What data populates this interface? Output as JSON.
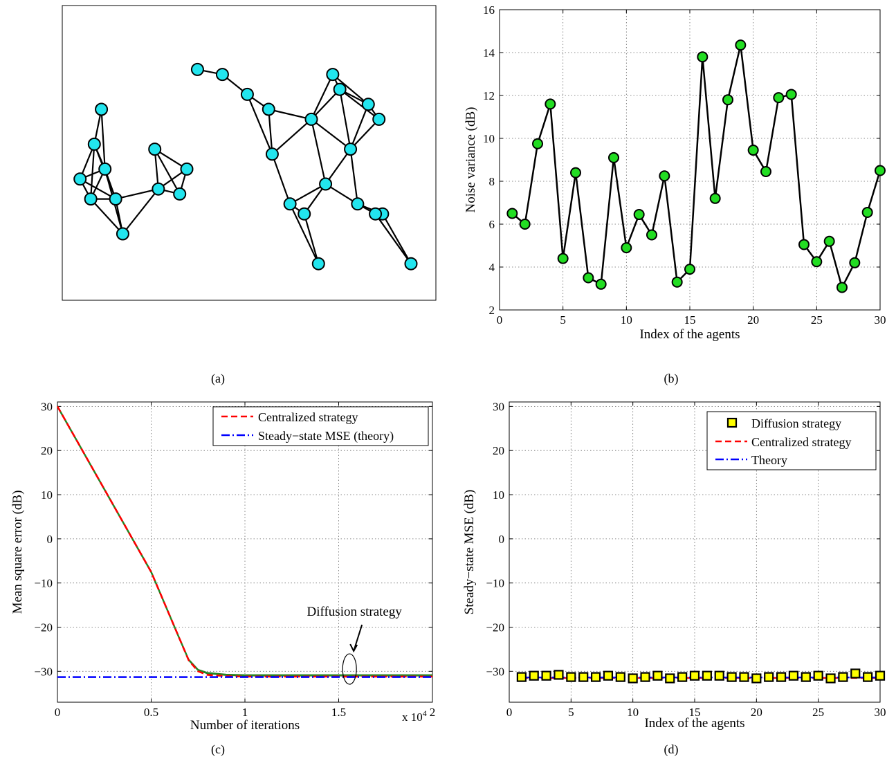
{
  "panels": {
    "a": {
      "label": "(a)"
    },
    "b": {
      "label": "(b)"
    },
    "c": {
      "label": "(c)"
    },
    "d": {
      "label": "(d)"
    }
  },
  "colors": {
    "node_fill": "#22e5ee",
    "noise_marker": "#22dd22",
    "mse_marker": "#ffff00",
    "centralized": "#ff0000",
    "theory": "#0000ff",
    "diffusion_lines": "#228b22"
  },
  "chart_data": [
    {
      "id": "a",
      "type": "network",
      "nodes": [
        [
          0.62,
          0.12
        ],
        [
          0.55,
          0.08
        ],
        [
          0.48,
          0.07
        ],
        [
          0.82,
          0.46
        ],
        [
          0.86,
          0.08
        ],
        [
          0.88,
          0.11
        ],
        [
          0.91,
          0.23
        ],
        [
          0.84,
          0.3
        ],
        [
          0.8,
          0.17
        ],
        [
          0.93,
          0.34
        ],
        [
          1.0,
          0.36
        ],
        [
          1.08,
          0.46
        ],
        [
          0.68,
          0.15
        ],
        [
          0.69,
          0.24
        ],
        [
          0.74,
          0.34
        ],
        [
          0.78,
          0.36
        ],
        [
          0.99,
          0.17
        ],
        [
          0.96,
          0.14
        ],
        [
          0.98,
          0.36
        ],
        [
          0.43,
          0.32
        ],
        [
          0.45,
          0.27
        ],
        [
          0.37,
          0.31
        ],
        [
          0.25,
          0.33
        ],
        [
          0.27,
          0.4
        ],
        [
          0.22,
          0.27
        ],
        [
          0.21,
          0.15
        ],
        [
          0.36,
          0.23
        ],
        [
          0.15,
          0.29
        ],
        [
          0.18,
          0.33
        ],
        [
          0.19,
          0.22
        ]
      ],
      "edges": []
    },
    {
      "id": "b",
      "type": "line",
      "x": [
        1,
        2,
        3,
        4,
        5,
        6,
        7,
        8,
        9,
        10,
        11,
        12,
        13,
        14,
        15,
        16,
        17,
        18,
        19,
        20,
        21,
        22,
        23,
        24,
        25,
        26,
        27,
        28,
        29,
        30
      ],
      "values": [
        6.5,
        6.0,
        9.75,
        11.6,
        4.4,
        8.4,
        3.5,
        3.2,
        9.1,
        4.9,
        6.45,
        5.5,
        8.25,
        3.3,
        3.9,
        13.8,
        7.2,
        11.8,
        14.35,
        9.45,
        8.45,
        11.9,
        12.05,
        5.05,
        4.25,
        5.2,
        3.05,
        4.2,
        6.55,
        8.5
      ],
      "xlabel": "Index of the agents",
      "ylabel": "Noise variance (dB)",
      "xlim": [
        0,
        30
      ],
      "ylim": [
        2,
        16
      ],
      "xticks": [
        0,
        5,
        10,
        15,
        20,
        25,
        30
      ],
      "yticks": [
        2,
        4,
        6,
        8,
        10,
        12,
        14,
        16
      ],
      "grid": true
    },
    {
      "id": "c",
      "type": "line",
      "xlabel": "Number of iterations",
      "ylabel": "Mean square error (dB)",
      "x_multiplier": "x 10",
      "x_multiplier_exp": "4",
      "xlim": [
        0,
        2
      ],
      "ylim": [
        -37,
        31
      ],
      "xticks": [
        0,
        0.5,
        1,
        1.5,
        2
      ],
      "yticks": [
        -30,
        -20,
        -10,
        0,
        10,
        20,
        30
      ],
      "xtick_labels": [
        "0",
        "0.5",
        "1",
        "1.5",
        "2"
      ],
      "grid": true,
      "legend_position": "top-right",
      "series": [
        {
          "name": "Centralized strategy",
          "style": "dashed",
          "x": [
            0,
            0.1,
            0.2,
            0.3,
            0.4,
            0.5,
            0.6,
            0.65,
            0.7,
            0.75,
            0.8,
            0.9,
            1.0,
            1.2,
            1.4,
            1.6,
            1.8,
            2.0
          ],
          "values": [
            30,
            22.5,
            15,
            7.5,
            0,
            -7.5,
            -17.5,
            -22.5,
            -27.5,
            -30.0,
            -30.8,
            -31.1,
            -31.2,
            -31.2,
            -31.2,
            -31.2,
            -31.2,
            -31.2
          ]
        },
        {
          "name": "Steady−state MSE (theory)",
          "style": "dashdot",
          "x": [
            0,
            2
          ],
          "values": [
            -31.3,
            -31.3
          ]
        },
        {
          "name": "Diffusion strategy",
          "style": "solid",
          "x": [
            0,
            0.1,
            0.2,
            0.3,
            0.4,
            0.5,
            0.6,
            0.65,
            0.7,
            0.75,
            0.8,
            0.9,
            1.0,
            1.2,
            1.4,
            1.6,
            1.8,
            2.0
          ],
          "values": [
            30,
            22.5,
            15,
            7.5,
            0,
            -7.5,
            -17.5,
            -22.5,
            -27.4,
            -29.7,
            -30.4,
            -30.8,
            -30.9,
            -30.9,
            -30.9,
            -30.9,
            -30.9,
            -30.9
          ]
        }
      ],
      "annotation": {
        "text": "Diffusion strategy",
        "x": 1.58,
        "y": -30.9
      }
    },
    {
      "id": "d",
      "type": "scatter",
      "xlabel": "Index of the agents",
      "ylabel": "Steady−state MSE (dB)",
      "xlim": [
        0,
        30
      ],
      "ylim": [
        -37,
        31
      ],
      "xticks": [
        0,
        5,
        10,
        15,
        20,
        25,
        30
      ],
      "yticks": [
        -30,
        -20,
        -10,
        0,
        10,
        20,
        30
      ],
      "grid": true,
      "legend_position": "top-right",
      "series": [
        {
          "name": "Diffusion strategy",
          "style": "square-markers",
          "x": [
            1,
            2,
            3,
            4,
            5,
            6,
            7,
            8,
            9,
            10,
            11,
            12,
            13,
            14,
            15,
            16,
            17,
            18,
            19,
            20,
            21,
            22,
            23,
            24,
            25,
            26,
            27,
            28,
            29,
            30
          ],
          "values": [
            -31.3,
            -31.0,
            -31.0,
            -30.8,
            -31.3,
            -31.3,
            -31.3,
            -31.0,
            -31.3,
            -31.6,
            -31.3,
            -31.0,
            -31.6,
            -31.3,
            -31.0,
            -31.0,
            -31.0,
            -31.3,
            -31.3,
            -31.6,
            -31.3,
            -31.3,
            -31.0,
            -31.3,
            -31.0,
            -31.6,
            -31.3,
            -30.5,
            -31.3,
            -31.0
          ]
        },
        {
          "name": "Centralized strategy",
          "style": "dashed",
          "x": [
            1,
            30
          ],
          "values": [
            -31.5,
            -31.5
          ]
        },
        {
          "name": "Theory",
          "style": "dashdot",
          "x": [
            1,
            30
          ],
          "values": [
            -31.4,
            -31.4
          ]
        }
      ]
    }
  ]
}
